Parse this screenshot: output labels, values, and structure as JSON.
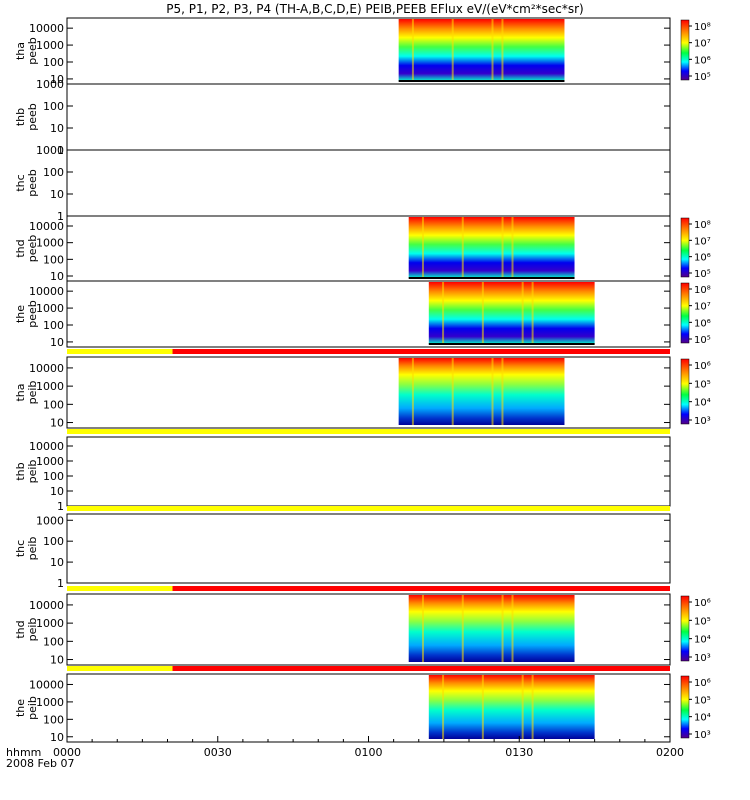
{
  "title": "P5, P1, P2, P3, P4 (TH-A,B,C,D,E) PEIB,PEEB EFlux eV/(eV*cm²*sec*sr)",
  "footer": {
    "time_label": "hhmm",
    "date_label": "2008 Feb 07"
  },
  "chart_data": {
    "type": "heatmap",
    "x_axis": {
      "range": [
        "0000",
        "0200"
      ],
      "ticks": [
        "0000",
        "0030",
        "0100",
        "0130",
        "0200"
      ]
    },
    "colors": {
      "yellow_bar": "#ffff00",
      "red_bar": "#ff0000",
      "spectrogram_high": "#ff0000",
      "spectrogram_low": "#0000ff"
    },
    "panels": [
      {
        "id": "tha-peeb",
        "ylabel_top": "tha",
        "ylabel_bottom": "peeb",
        "yticks": [
          "10000",
          "1000",
          "100",
          "10"
        ],
        "ylim_log10": [
          0.7,
          4.6
        ],
        "data_start": "0106",
        "data_end": "0139",
        "cbar_ticks": [
          "10⁸",
          "10⁷",
          "10⁶",
          "10⁵"
        ],
        "has_data": true,
        "kind": "electron",
        "status_bar": null
      },
      {
        "id": "thb-peeb",
        "ylabel_top": "thb",
        "ylabel_bottom": "peeb",
        "yticks": [
          "1000",
          "100",
          "10",
          "1"
        ],
        "ylim_log10": [
          0,
          3
        ],
        "has_data": false,
        "status_bar": null
      },
      {
        "id": "thc-peeb",
        "ylabel_top": "thc",
        "ylabel_bottom": "peeb",
        "yticks": [
          "1000",
          "100",
          "10",
          "1"
        ],
        "ylim_log10": [
          0,
          3
        ],
        "has_data": false,
        "status_bar": null
      },
      {
        "id": "thd-peeb",
        "ylabel_top": "thd",
        "ylabel_bottom": "peeb",
        "yticks": [
          "10000",
          "1000",
          "100",
          "10"
        ],
        "ylim_log10": [
          0.7,
          4.6
        ],
        "data_start": "0108",
        "data_end": "0141",
        "cbar_ticks": [
          "10⁸",
          "10⁷",
          "10⁶",
          "10⁵"
        ],
        "has_data": true,
        "kind": "electron",
        "status_bar": null
      },
      {
        "id": "the-peeb",
        "ylabel_top": "the",
        "ylabel_bottom": "peeb",
        "yticks": [
          "10000",
          "1000",
          "100",
          "10"
        ],
        "ylim_log10": [
          0.7,
          4.6
        ],
        "data_start": "0112",
        "data_end": "0145",
        "cbar_ticks": [
          "10⁸",
          "10⁷",
          "10⁶",
          "10⁵"
        ],
        "has_data": true,
        "kind": "electron",
        "status_bar": null
      },
      {
        "id": "tha-peib",
        "ylabel_top": "tha",
        "ylabel_bottom": "peib",
        "yticks": [
          "10000",
          "1000",
          "100",
          "10"
        ],
        "ylim_log10": [
          0.7,
          4.6
        ],
        "data_start": "0106",
        "data_end": "0139",
        "cbar_ticks": [
          "10⁶",
          "10⁵",
          "10⁴",
          "10³"
        ],
        "has_data": true,
        "kind": "ion",
        "status_bar": {
          "yellow_until": "0021"
        }
      },
      {
        "id": "thb-peib",
        "ylabel_top": "thb",
        "ylabel_bottom": "peib",
        "yticks": [
          "10000",
          "1000",
          "100",
          "10",
          "1"
        ],
        "ylim_log10": [
          0,
          4.6
        ],
        "has_data": false,
        "status_bar": {
          "yellow_until": "0200"
        }
      },
      {
        "id": "thc-peib",
        "ylabel_top": "thc",
        "ylabel_bottom": "peib",
        "yticks": [
          "1000",
          "100",
          "10",
          "1"
        ],
        "ylim_log10": [
          0,
          3.3
        ],
        "has_data": false,
        "status_bar": {
          "yellow_until": "0200"
        }
      },
      {
        "id": "thd-peib",
        "ylabel_top": "thd",
        "ylabel_bottom": "peib",
        "yticks": [
          "10000",
          "1000",
          "100",
          "10"
        ],
        "ylim_log10": [
          0.7,
          4.6
        ],
        "data_start": "0108",
        "data_end": "0141",
        "cbar_ticks": [
          "10⁶",
          "10⁵",
          "10⁴",
          "10³"
        ],
        "has_data": true,
        "kind": "ion",
        "status_bar": {
          "yellow_until": "0021"
        }
      },
      {
        "id": "the-peib",
        "ylabel_top": "the",
        "ylabel_bottom": "peib",
        "yticks": [
          "10000",
          "1000",
          "100",
          "10"
        ],
        "ylim_log10": [
          0.7,
          4.6
        ],
        "data_start": "0112",
        "data_end": "0145",
        "cbar_ticks": [
          "10⁶",
          "10⁵",
          "10⁴",
          "10³"
        ],
        "has_data": true,
        "kind": "ion",
        "status_bar": {
          "yellow_until": "0021"
        }
      }
    ]
  }
}
